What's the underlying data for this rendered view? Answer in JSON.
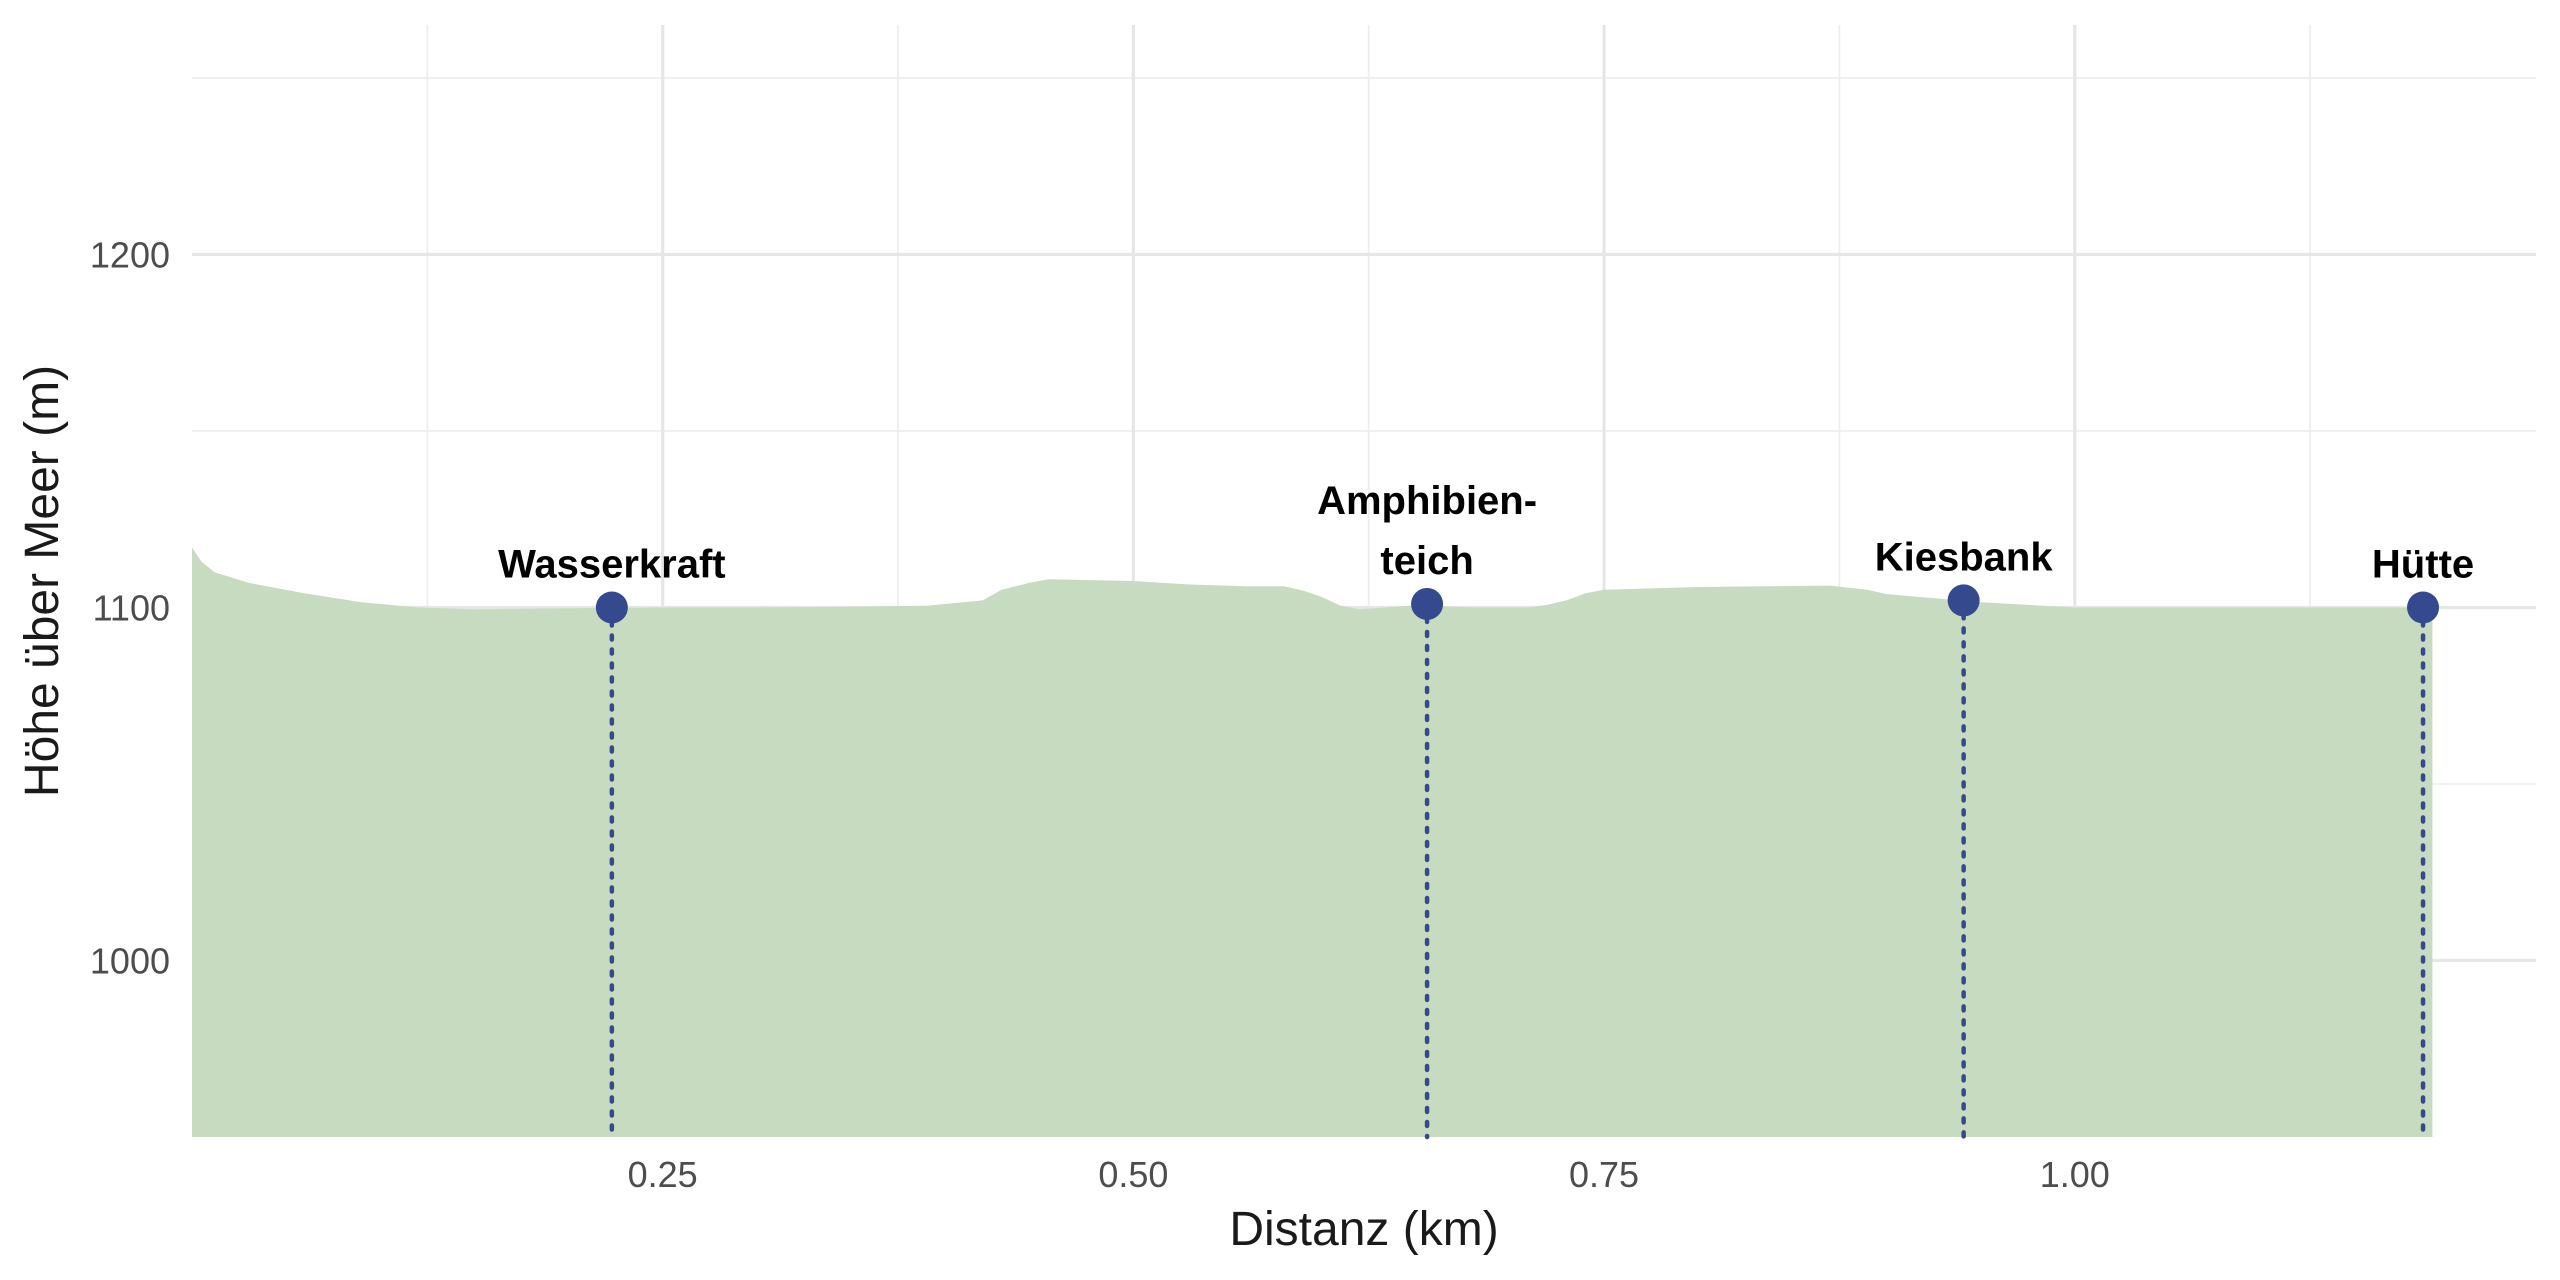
{
  "chart_data": {
    "type": "area",
    "title": "",
    "xlabel": "Distanz (km)",
    "ylabel": "Höhe über Meer (m)",
    "xlim": [
      0.0,
      1.245
    ],
    "ylim": [
      950,
      1265
    ],
    "x_ticks": [
      {
        "value": 0.25,
        "label": "0.25"
      },
      {
        "value": 0.5,
        "label": "0.50"
      },
      {
        "value": 0.75,
        "label": "0.75"
      },
      {
        "value": 1.0,
        "label": "1.00"
      }
    ],
    "y_ticks": [
      {
        "value": 1000,
        "label": "1000"
      },
      {
        "value": 1100,
        "label": "1100"
      },
      {
        "value": 1200,
        "label": "1200"
      }
    ],
    "grid": true,
    "colors": {
      "area": "#c6dbc0",
      "poi": "#354a8e"
    },
    "profile": {
      "x": [
        0.0,
        0.005,
        0.012,
        0.03,
        0.06,
        0.09,
        0.12,
        0.15,
        0.2,
        0.25,
        0.3,
        0.35,
        0.39,
        0.42,
        0.43,
        0.445,
        0.455,
        0.5,
        0.53,
        0.56,
        0.58,
        0.59,
        0.6,
        0.61,
        0.62,
        0.65,
        0.68,
        0.71,
        0.72,
        0.73,
        0.74,
        0.75,
        0.8,
        0.87,
        0.89,
        0.9,
        0.95,
        1.0,
        1.05,
        1.1,
        1.15,
        1.19
      ],
      "y": [
        1117,
        1113,
        1110,
        1107,
        1104,
        1101.5,
        1100,
        1099.5,
        1099.8,
        1100,
        1100,
        1100.2,
        1100.5,
        1102,
        1105,
        1107,
        1108,
        1107.5,
        1106.5,
        1106,
        1106,
        1104.8,
        1103,
        1100.5,
        1099.5,
        1100.6,
        1100,
        1100,
        1100.8,
        1102,
        1104,
        1105,
        1105.8,
        1106.2,
        1105,
        1103.8,
        1101.5,
        1100,
        1100,
        1100,
        1100,
        1100
      ]
    },
    "series": [
      {
        "values": [
          {
            "label": "Wasserkraft",
            "lines": [
              "Wasserkraft"
            ],
            "x": 0.223,
            "y": 1100
          },
          {
            "label": "Amphibienteich",
            "lines": [
              "Amphibien-",
              "teich"
            ],
            "x": 0.656,
            "y": 1101
          },
          {
            "label": "Kiesbank",
            "lines": [
              "Kiesbank"
            ],
            "x": 0.941,
            "y": 1102
          },
          {
            "label": "Hütte",
            "lines": [
              "Hütte"
            ],
            "x": 1.185,
            "y": 1100
          }
        ]
      }
    ]
  }
}
